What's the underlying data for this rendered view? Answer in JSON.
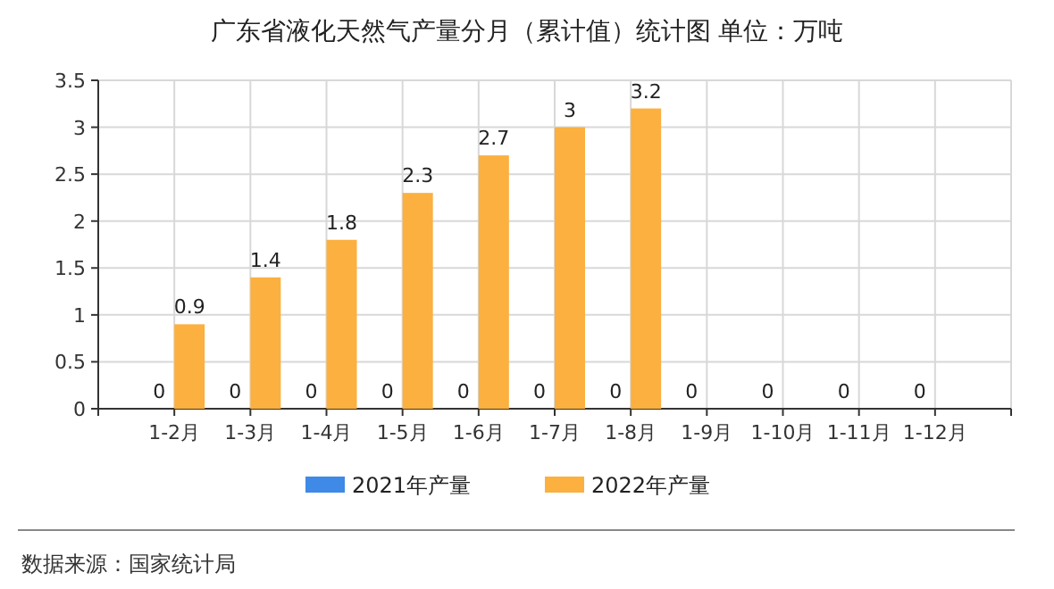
{
  "chart_data": {
    "type": "bar",
    "title": "广东省液化天然气产量分月（累计值）统计图 单位：万吨",
    "categories": [
      "1-2月",
      "1-3月",
      "1-4月",
      "1-5月",
      "1-6月",
      "1-7月",
      "1-8月",
      "1-9月",
      "1-10月",
      "1-11月",
      "1-12月"
    ],
    "series": [
      {
        "name": "2021年产量",
        "color": "#3e8ae6",
        "values": [
          0,
          0,
          0,
          0,
          0,
          0,
          0,
          0,
          0,
          0,
          0
        ]
      },
      {
        "name": "2022年产量",
        "color": "#fbb040",
        "values": [
          0.9,
          1.4,
          1.8,
          2.3,
          2.7,
          3,
          3.2,
          null,
          null,
          null,
          null
        ]
      }
    ],
    "ylim": [
      0,
      3.5
    ],
    "yticks": [
      0,
      0.5,
      1,
      1.5,
      2,
      2.5,
      3,
      3.5
    ],
    "grid": true,
    "legend": "bottom",
    "data_labels": true,
    "annotations": [
      "数据来源：国家统计局"
    ]
  }
}
